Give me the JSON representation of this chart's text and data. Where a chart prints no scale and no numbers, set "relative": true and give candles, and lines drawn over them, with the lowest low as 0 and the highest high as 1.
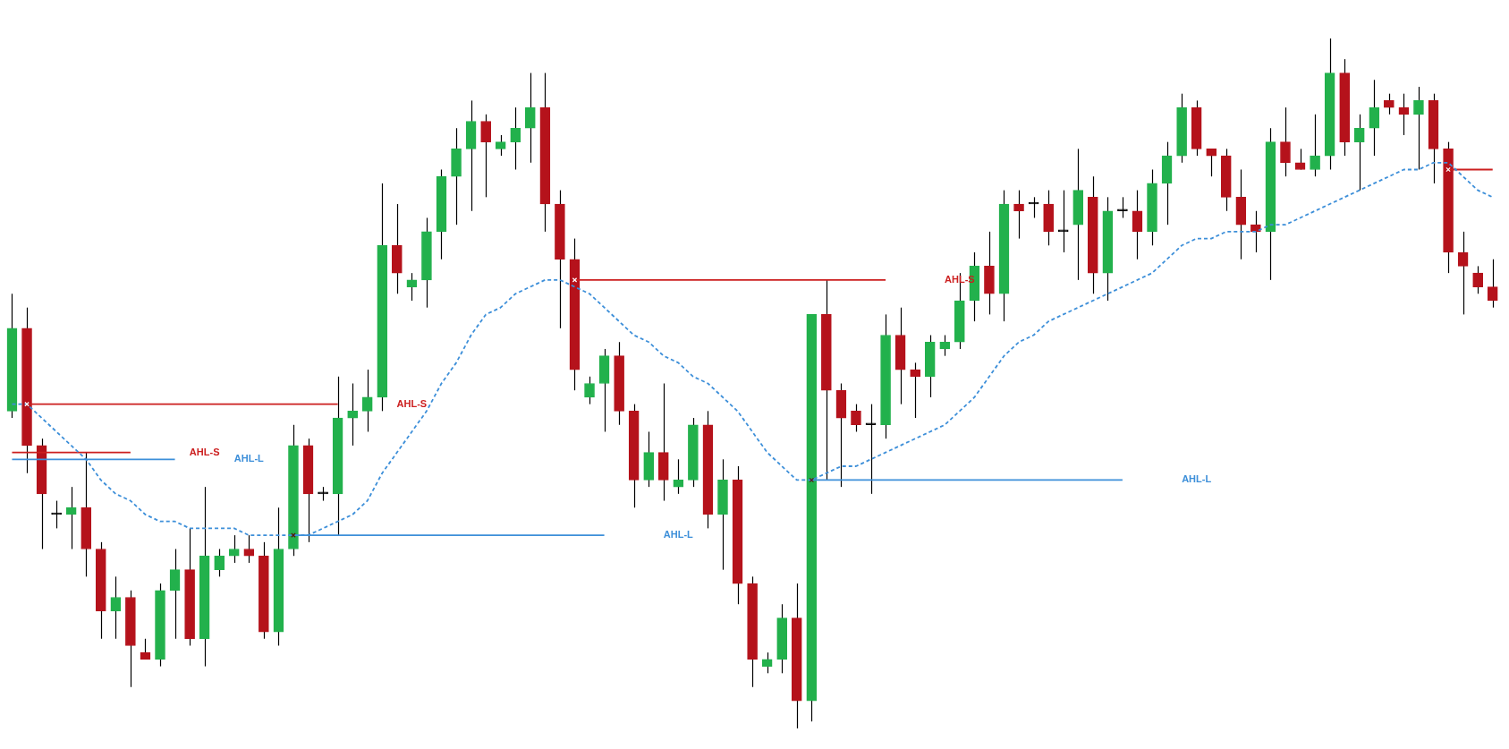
{
  "chart_data": {
    "type": "candlestick",
    "relative": true,
    "legend": false,
    "categories": [
      null,
      null,
      null,
      null,
      null,
      null,
      null,
      null,
      null,
      null,
      null,
      null,
      null,
      null,
      null,
      null,
      null,
      null,
      null,
      null,
      null,
      null,
      null,
      null,
      null,
      null,
      null,
      null,
      null,
      null,
      null,
      null,
      null,
      null,
      null,
      null,
      null,
      null,
      null,
      null,
      null,
      null,
      null,
      null,
      null,
      null,
      null,
      null,
      null,
      null,
      null,
      null,
      null,
      null,
      null,
      null,
      null,
      null,
      null,
      null,
      null,
      null,
      null,
      null,
      null,
      null,
      null,
      null,
      null,
      null,
      null,
      null,
      null,
      null,
      null,
      null,
      null,
      null,
      null,
      null,
      null,
      null,
      null,
      null,
      null,
      null,
      null,
      null,
      null,
      null,
      null,
      null,
      null,
      null,
      null,
      null,
      null,
      null,
      null,
      null,
      null
    ],
    "ohlc": [
      [
        0.46,
        0.63,
        0.45,
        0.58
      ],
      [
        0.58,
        0.61,
        0.37,
        0.41
      ],
      [
        0.41,
        0.42,
        0.26,
        0.34
      ],
      [
        0.31,
        0.33,
        0.29,
        0.31
      ],
      [
        0.31,
        0.35,
        0.26,
        0.32
      ],
      [
        0.32,
        0.4,
        0.22,
        0.26
      ],
      [
        0.26,
        0.27,
        0.13,
        0.17
      ],
      [
        0.17,
        0.22,
        0.13,
        0.19
      ],
      [
        0.19,
        0.2,
        0.06,
        0.12
      ],
      [
        0.11,
        0.13,
        0.1,
        0.1
      ],
      [
        0.1,
        0.21,
        0.09,
        0.2
      ],
      [
        0.2,
        0.26,
        0.13,
        0.23
      ],
      [
        0.23,
        0.29,
        0.12,
        0.13
      ],
      [
        0.13,
        0.35,
        0.09,
        0.25
      ],
      [
        0.23,
        0.26,
        0.22,
        0.25
      ],
      [
        0.25,
        0.28,
        0.24,
        0.26
      ],
      [
        0.26,
        0.28,
        0.24,
        0.25
      ],
      [
        0.25,
        0.27,
        0.13,
        0.14
      ],
      [
        0.14,
        0.32,
        0.12,
        0.26
      ],
      [
        0.26,
        0.44,
        0.25,
        0.41
      ],
      [
        0.41,
        0.42,
        0.27,
        0.34
      ],
      [
        0.34,
        0.35,
        0.33,
        0.34
      ],
      [
        0.34,
        0.51,
        0.28,
        0.45
      ],
      [
        0.45,
        0.5,
        0.41,
        0.46
      ],
      [
        0.46,
        0.52,
        0.43,
        0.48
      ],
      [
        0.48,
        0.79,
        0.46,
        0.7
      ],
      [
        0.7,
        0.76,
        0.63,
        0.66
      ],
      [
        0.64,
        0.66,
        0.62,
        0.65
      ],
      [
        0.65,
        0.74,
        0.61,
        0.72
      ],
      [
        0.72,
        0.81,
        0.68,
        0.8
      ],
      [
        0.8,
        0.87,
        0.73,
        0.84
      ],
      [
        0.84,
        0.91,
        0.75,
        0.88
      ],
      [
        0.88,
        0.89,
        0.77,
        0.85
      ],
      [
        0.84,
        0.86,
        0.83,
        0.85
      ],
      [
        0.85,
        0.9,
        0.81,
        0.87
      ],
      [
        0.87,
        0.95,
        0.82,
        0.9
      ],
      [
        0.9,
        0.95,
        0.72,
        0.76
      ],
      [
        0.76,
        0.78,
        0.58,
        0.68
      ],
      [
        0.68,
        0.71,
        0.49,
        0.52
      ],
      [
        0.48,
        0.51,
        0.47,
        0.5
      ],
      [
        0.5,
        0.55,
        0.43,
        0.54
      ],
      [
        0.54,
        0.56,
        0.44,
        0.46
      ],
      [
        0.46,
        0.47,
        0.32,
        0.36
      ],
      [
        0.36,
        0.43,
        0.35,
        0.4
      ],
      [
        0.4,
        0.5,
        0.33,
        0.36
      ],
      [
        0.35,
        0.39,
        0.34,
        0.36
      ],
      [
        0.36,
        0.45,
        0.35,
        0.44
      ],
      [
        0.44,
        0.46,
        0.29,
        0.31
      ],
      [
        0.31,
        0.39,
        0.23,
        0.36
      ],
      [
        0.36,
        0.38,
        0.18,
        0.21
      ],
      [
        0.21,
        0.22,
        0.06,
        0.1
      ],
      [
        0.09,
        0.11,
        0.08,
        0.1
      ],
      [
        0.1,
        0.18,
        0.08,
        0.16
      ],
      [
        0.16,
        0.21,
        0,
        0.04
      ],
      [
        0.04,
        0.6,
        0.01,
        0.6
      ],
      [
        0.6,
        0.65,
        0.36,
        0.49
      ],
      [
        0.49,
        0.5,
        0.35,
        0.45
      ],
      [
        0.46,
        0.47,
        0.43,
        0.44
      ],
      [
        0.44,
        0.47,
        0.34,
        0.44
      ],
      [
        0.44,
        0.6,
        0.42,
        0.57
      ],
      [
        0.57,
        0.61,
        0.47,
        0.52
      ],
      [
        0.52,
        0.53,
        0.45,
        0.51
      ],
      [
        0.51,
        0.57,
        0.48,
        0.56
      ],
      [
        0.55,
        0.57,
        0.54,
        0.56
      ],
      [
        0.56,
        0.66,
        0.55,
        0.62
      ],
      [
        0.62,
        0.69,
        0.59,
        0.67
      ],
      [
        0.67,
        0.72,
        0.6,
        0.63
      ],
      [
        0.63,
        0.78,
        0.59,
        0.76
      ],
      [
        0.76,
        0.78,
        0.71,
        0.75
      ],
      [
        0.76,
        0.77,
        0.74,
        0.76
      ],
      [
        0.76,
        0.78,
        0.7,
        0.72
      ],
      [
        0.72,
        0.78,
        0.69,
        0.72
      ],
      [
        0.73,
        0.84,
        0.65,
        0.78
      ],
      [
        0.77,
        0.8,
        0.63,
        0.66
      ],
      [
        0.66,
        0.77,
        0.62,
        0.75
      ],
      [
        0.75,
        0.77,
        0.74,
        0.75
      ],
      [
        0.75,
        0.78,
        0.68,
        0.72
      ],
      [
        0.72,
        0.81,
        0.7,
        0.79
      ],
      [
        0.79,
        0.85,
        0.73,
        0.83
      ],
      [
        0.83,
        0.92,
        0.82,
        0.9
      ],
      [
        0.9,
        0.91,
        0.83,
        0.84
      ],
      [
        0.84,
        0.84,
        0.8,
        0.83
      ],
      [
        0.83,
        0.84,
        0.75,
        0.77
      ],
      [
        0.77,
        0.81,
        0.68,
        0.73
      ],
      [
        0.73,
        0.75,
        0.69,
        0.72
      ],
      [
        0.72,
        0.87,
        0.65,
        0.85
      ],
      [
        0.85,
        0.9,
        0.8,
        0.82
      ],
      [
        0.82,
        0.84,
        0.81,
        0.81
      ],
      [
        0.81,
        0.89,
        0.8,
        0.83
      ],
      [
        0.83,
        1,
        0.81,
        0.95
      ],
      [
        0.95,
        0.97,
        0.83,
        0.85
      ],
      [
        0.85,
        0.89,
        0.78,
        0.87
      ],
      [
        0.87,
        0.94,
        0.83,
        0.9
      ],
      [
        0.91,
        0.92,
        0.89,
        0.9
      ],
      [
        0.9,
        0.92,
        0.86,
        0.89
      ],
      [
        0.89,
        0.93,
        0.81,
        0.91
      ],
      [
        0.91,
        0.92,
        0.79,
        0.84
      ],
      [
        0.84,
        0.85,
        0.66,
        0.69
      ],
      [
        0.69,
        0.72,
        0.6,
        0.67
      ],
      [
        0.66,
        0.67,
        0.63,
        0.64
      ],
      [
        0.64,
        0.68,
        0.61,
        0.62
      ]
    ],
    "colors": [
      "#22b14c",
      "#b5121b",
      "#b5121b",
      "#000000",
      "#22b14c",
      "#b5121b",
      "#b5121b",
      "#22b14c",
      "#b5121b",
      "#b5121b",
      "#22b14c",
      "#22b14c",
      "#b5121b",
      "#22b14c",
      "#22b14c",
      "#22b14c",
      "#b5121b",
      "#b5121b",
      "#22b14c",
      "#22b14c",
      "#b5121b",
      "#000000",
      "#22b14c",
      "#22b14c",
      "#22b14c",
      "#22b14c",
      "#b5121b",
      "#22b14c",
      "#22b14c",
      "#22b14c",
      "#22b14c",
      "#22b14c",
      "#b5121b",
      "#22b14c",
      "#22b14c",
      "#22b14c",
      "#b5121b",
      "#b5121b",
      "#b5121b",
      "#22b14c",
      "#22b14c",
      "#b5121b",
      "#b5121b",
      "#22b14c",
      "#b5121b",
      "#22b14c",
      "#22b14c",
      "#b5121b",
      "#22b14c",
      "#b5121b",
      "#b5121b",
      "#22b14c",
      "#22b14c",
      "#b5121b",
      "#22b14c",
      "#b5121b",
      "#b5121b",
      "#b5121b",
      "#000000",
      "#22b14c",
      "#b5121b",
      "#b5121b",
      "#22b14c",
      "#22b14c",
      "#22b14c",
      "#22b14c",
      "#b5121b",
      "#22b14c",
      "#b5121b",
      "#000000",
      "#b5121b",
      "#000000",
      "#22b14c",
      "#b5121b",
      "#22b14c",
      "#000000",
      "#b5121b",
      "#22b14c",
      "#22b14c",
      "#22b14c",
      "#b5121b",
      "#b5121b",
      "#b5121b",
      "#b5121b",
      "#b5121b",
      "#22b14c",
      "#b5121b",
      "#b5121b",
      "#22b14c",
      "#22b14c",
      "#b5121b",
      "#22b14c",
      "#22b14c",
      "#b5121b",
      "#b5121b",
      "#22b14c",
      "#b5121b",
      "#b5121b",
      "#b5121b",
      "#b5121b",
      "#b5121b"
    ],
    "series": [
      {
        "type": "line",
        "line_style": "dashed",
        "color": "#3d8fd9",
        "values": [
          0.47,
          0.47,
          0.45,
          0.43,
          0.41,
          0.39,
          0.36,
          0.34,
          0.33,
          0.31,
          0.3,
          0.3,
          0.29,
          0.29,
          0.29,
          0.29,
          0.28,
          0.28,
          0.28,
          0.28,
          0.28,
          0.29,
          0.3,
          0.31,
          0.33,
          0.37,
          0.4,
          0.43,
          0.46,
          0.5,
          0.53,
          0.57,
          0.6,
          0.61,
          0.63,
          0.64,
          0.65,
          0.65,
          0.64,
          0.63,
          0.61,
          0.59,
          0.57,
          0.56,
          0.54,
          0.53,
          0.51,
          0.5,
          0.48,
          0.46,
          0.43,
          0.4,
          0.38,
          0.36,
          0.36,
          0.37,
          0.38,
          0.38,
          0.39,
          0.4,
          0.41,
          0.42,
          0.43,
          0.44,
          0.46,
          0.48,
          0.51,
          0.54,
          0.56,
          0.57,
          0.59,
          0.6,
          0.61,
          0.62,
          0.63,
          0.64,
          0.65,
          0.66,
          0.68,
          0.7,
          0.71,
          0.71,
          0.72,
          0.72,
          0.72,
          0.73,
          0.73,
          0.74,
          0.75,
          0.76,
          0.77,
          0.78,
          0.79,
          0.8,
          0.81,
          0.81,
          0.82,
          0.82,
          0.8,
          0.78,
          0.77
        ]
      },
      {
        "type": "line",
        "line_style": "solid",
        "color": "#cc1f1f",
        "values": [
          0.4,
          0.4,
          0.4,
          0.4,
          0.4,
          0.4,
          0.4,
          0.4,
          0.4,
          null,
          null,
          null,
          null,
          null,
          null,
          null,
          null,
          null,
          null,
          null,
          null,
          null,
          null,
          null,
          null,
          null,
          null,
          null,
          null,
          null,
          null,
          null,
          null,
          null,
          null,
          null,
          null,
          null,
          null,
          null,
          null,
          null,
          null,
          null,
          null,
          null,
          null,
          null,
          null,
          null,
          null,
          null,
          null,
          null,
          null,
          null,
          null,
          null,
          null,
          null,
          null,
          null,
          null,
          null,
          null,
          null,
          null,
          null,
          null,
          null,
          null,
          null,
          null,
          null,
          null,
          null,
          null,
          null,
          null,
          null,
          null,
          null,
          null,
          null,
          null,
          null,
          null,
          null,
          null,
          null,
          null,
          null,
          null,
          null,
          null,
          null,
          null,
          null,
          null,
          null,
          null
        ]
      },
      {
        "type": "line",
        "line_style": "solid",
        "color": "#3d8fd9",
        "values": [
          0.39,
          0.39,
          0.39,
          0.39,
          0.39,
          0.39,
          0.39,
          0.39,
          0.39,
          0.39,
          0.39,
          0.39,
          null,
          null,
          null,
          null,
          null,
          null,
          null,
          null,
          null,
          null,
          null,
          null,
          null,
          null,
          null,
          null,
          null,
          null,
          null,
          null,
          null,
          null,
          null,
          null,
          null,
          null,
          null,
          null,
          null,
          null,
          null,
          null,
          null,
          null,
          null,
          null,
          null,
          null,
          null,
          null,
          null,
          null,
          null,
          null,
          null,
          null,
          null,
          null,
          null,
          null,
          null,
          null,
          null,
          null,
          null,
          null,
          null,
          null,
          null,
          null,
          null,
          null,
          null,
          null,
          null,
          null,
          null,
          null,
          null,
          null,
          null,
          null,
          null,
          null,
          null,
          null,
          null,
          null,
          null,
          null,
          null,
          null,
          null,
          null,
          null,
          null,
          null,
          null,
          null
        ]
      },
      {
        "type": "line",
        "line_style": "solid",
        "color": "#cc1f1f",
        "values": [
          null,
          0.47,
          0.47,
          0.47,
          0.47,
          0.47,
          0.47,
          0.47,
          0.47,
          0.47,
          0.47,
          0.47,
          0.47,
          0.47,
          0.47,
          0.47,
          0.47,
          0.47,
          0.47,
          0.47,
          0.47,
          0.47,
          0.47,
          null,
          null,
          null,
          null,
          null,
          null,
          null,
          null,
          null,
          null,
          null,
          null,
          null,
          null,
          null,
          null,
          null,
          null,
          null,
          null,
          null,
          null,
          null,
          null,
          null,
          null,
          null,
          null,
          null,
          null,
          null,
          null,
          null,
          null,
          null,
          null,
          null,
          null,
          null,
          null,
          null,
          null,
          null,
          null,
          null,
          null,
          null,
          null,
          null,
          null,
          null,
          null,
          null,
          null,
          null,
          null,
          null,
          null,
          null,
          null,
          null,
          null,
          null,
          null,
          null,
          null,
          null,
          null,
          null,
          null,
          null,
          null,
          null,
          null,
          null,
          null,
          null,
          null
        ]
      },
      {
        "type": "line",
        "line_style": "solid",
        "color": "#3d8fd9",
        "values": [
          null,
          null,
          null,
          null,
          null,
          null,
          null,
          null,
          null,
          null,
          null,
          null,
          null,
          null,
          null,
          null,
          null,
          null,
          null,
          0.28,
          0.28,
          0.28,
          0.28,
          0.28,
          0.28,
          0.28,
          0.28,
          0.28,
          0.28,
          0.28,
          0.28,
          0.28,
          0.28,
          0.28,
          0.28,
          0.28,
          0.28,
          0.28,
          0.28,
          0.28,
          0.28,
          null,
          null,
          null,
          null,
          null,
          null,
          null,
          null,
          null,
          null,
          null,
          null,
          null,
          null,
          null,
          null,
          null,
          null,
          null,
          null,
          null,
          null,
          null,
          null,
          null,
          null,
          null,
          null,
          null,
          null,
          null,
          null,
          null,
          null,
          null,
          null,
          null,
          null,
          null,
          null,
          null,
          null,
          null,
          null,
          null,
          null,
          null,
          null,
          null,
          null,
          null,
          null,
          null,
          null,
          null,
          null,
          null,
          null,
          null,
          null
        ]
      },
      {
        "type": "line",
        "line_style": "solid",
        "color": "#cc1f1f",
        "values": [
          null,
          null,
          null,
          null,
          null,
          null,
          null,
          null,
          null,
          null,
          null,
          null,
          null,
          null,
          null,
          null,
          null,
          null,
          null,
          null,
          null,
          null,
          null,
          null,
          null,
          null,
          null,
          null,
          null,
          null,
          null,
          null,
          null,
          null,
          null,
          null,
          null,
          null,
          0.65,
          0.65,
          0.65,
          0.65,
          0.65,
          0.65,
          0.65,
          0.65,
          0.65,
          0.65,
          0.65,
          0.65,
          0.65,
          0.65,
          0.65,
          0.65,
          0.65,
          0.65,
          0.65,
          0.65,
          0.65,
          0.65,
          null,
          null,
          null,
          null,
          null,
          null,
          null,
          null,
          null,
          null,
          null,
          null,
          null,
          null,
          null,
          null,
          null,
          null,
          null,
          null,
          null,
          null,
          null,
          null,
          null,
          null,
          null,
          null,
          null,
          null,
          null,
          null,
          null,
          null,
          null,
          null,
          null,
          null,
          null,
          null,
          null
        ]
      },
      {
        "type": "line",
        "line_style": "solid",
        "color": "#3d8fd9",
        "values": [
          null,
          null,
          null,
          null,
          null,
          null,
          null,
          null,
          null,
          null,
          null,
          null,
          null,
          null,
          null,
          null,
          null,
          null,
          null,
          null,
          null,
          null,
          null,
          null,
          null,
          null,
          null,
          null,
          null,
          null,
          null,
          null,
          null,
          null,
          null,
          null,
          null,
          null,
          null,
          null,
          null,
          null,
          null,
          null,
          null,
          null,
          null,
          null,
          null,
          null,
          null,
          null,
          null,
          null,
          0.36,
          0.36,
          0.36,
          0.36,
          0.36,
          0.36,
          0.36,
          0.36,
          0.36,
          0.36,
          0.36,
          0.36,
          0.36,
          0.36,
          0.36,
          0.36,
          0.36,
          0.36,
          0.36,
          0.36,
          0.36,
          0.36,
          null,
          null,
          null,
          null,
          null,
          null,
          null,
          null,
          null,
          null,
          null,
          null,
          null,
          null,
          null,
          null,
          null,
          null,
          null,
          null,
          null,
          null,
          null,
          null,
          null
        ]
      },
      {
        "type": "line",
        "line_style": "solid",
        "color": "#cc1f1f",
        "values": [
          null,
          null,
          null,
          null,
          null,
          null,
          null,
          null,
          null,
          null,
          null,
          null,
          null,
          null,
          null,
          null,
          null,
          null,
          null,
          null,
          null,
          null,
          null,
          null,
          null,
          null,
          null,
          null,
          null,
          null,
          null,
          null,
          null,
          null,
          null,
          null,
          null,
          null,
          null,
          null,
          null,
          null,
          null,
          null,
          null,
          null,
          null,
          null,
          null,
          null,
          null,
          null,
          null,
          null,
          null,
          null,
          null,
          null,
          null,
          null,
          null,
          null,
          null,
          null,
          null,
          null,
          null,
          null,
          null,
          null,
          null,
          null,
          null,
          null,
          null,
          null,
          null,
          null,
          null,
          null,
          null,
          null,
          null,
          null,
          null,
          null,
          null,
          null,
          null,
          null,
          null,
          null,
          null,
          null,
          null,
          null,
          null,
          0.81,
          0.81,
          0.81,
          0.81
        ]
      },
      {
        "type": "scatter",
        "marker": "cross",
        "colors": [
          "#ffffff",
          "#ffffff",
          "#ffffff",
          "#ffffff",
          "#ffffff",
          "#ffffff",
          "#ffffff",
          "#ffffff",
          "#ffffff",
          "#ffffff",
          "#ffffff",
          "#ffffff",
          "#ffffff",
          "#ffffff",
          "#ffffff",
          "#ffffff",
          "#ffffff",
          "#ffffff",
          "#ffffff",
          "#5a1010",
          "#ffffff",
          "#ffffff",
          "#ffffff",
          "#ffffff",
          "#ffffff",
          "#ffffff",
          "#ffffff",
          "#ffffff",
          "#ffffff",
          "#ffffff",
          "#ffffff",
          "#ffffff",
          "#ffffff",
          "#ffffff",
          "#ffffff",
          "#ffffff",
          "#ffffff",
          "#ffffff",
          "#ffffff",
          "#ffffff",
          "#ffffff",
          "#ffffff",
          "#ffffff",
          "#ffffff",
          "#ffffff",
          "#ffffff",
          "#ffffff",
          "#ffffff",
          "#ffffff",
          "#ffffff",
          "#ffffff",
          "#ffffff",
          "#ffffff",
          "#ffffff",
          "#5a1010",
          "#ffffff",
          "#ffffff",
          "#ffffff",
          "#ffffff",
          "#ffffff",
          "#ffffff",
          "#ffffff",
          "#ffffff",
          "#ffffff",
          "#ffffff",
          "#ffffff",
          "#ffffff",
          "#ffffff",
          "#ffffff",
          "#ffffff",
          "#ffffff",
          "#ffffff",
          "#ffffff",
          "#ffffff",
          "#ffffff",
          "#ffffff",
          "#ffffff",
          "#ffffff",
          "#ffffff",
          "#ffffff",
          "#ffffff",
          "#ffffff",
          "#ffffff",
          "#ffffff",
          "#ffffff",
          "#ffffff",
          "#ffffff",
          "#ffffff",
          "#ffffff",
          "#ffffff",
          "#ffffff",
          "#ffffff",
          "#ffffff",
          "#ffffff",
          "#ffffff",
          "#ffffff",
          "#ffffff",
          "#ffffff",
          "#ffffff",
          "#ffffff",
          "#ffffff"
        ],
        "values": [
          null,
          0.47,
          null,
          null,
          null,
          null,
          null,
          null,
          null,
          null,
          null,
          null,
          null,
          null,
          null,
          null,
          null,
          null,
          null,
          0.28,
          null,
          null,
          null,
          null,
          null,
          null,
          null,
          null,
          null,
          null,
          null,
          null,
          null,
          null,
          null,
          null,
          null,
          null,
          0.65,
          null,
          null,
          null,
          null,
          null,
          null,
          null,
          null,
          null,
          null,
          null,
          null,
          null,
          null,
          null,
          0.36,
          null,
          null,
          null,
          null,
          null,
          null,
          null,
          null,
          null,
          null,
          null,
          null,
          null,
          null,
          null,
          null,
          null,
          null,
          null,
          null,
          null,
          null,
          null,
          null,
          null,
          null,
          null,
          null,
          null,
          null,
          null,
          null,
          null,
          null,
          null,
          null,
          null,
          null,
          null,
          null,
          null,
          null,
          0.81,
          null,
          null,
          null
        ]
      }
    ],
    "annotations": [
      "AHL-S",
      "AHL-L",
      "AHL-S",
      "AHL-L",
      "AHL-S",
      "AHL-L"
    ]
  }
}
